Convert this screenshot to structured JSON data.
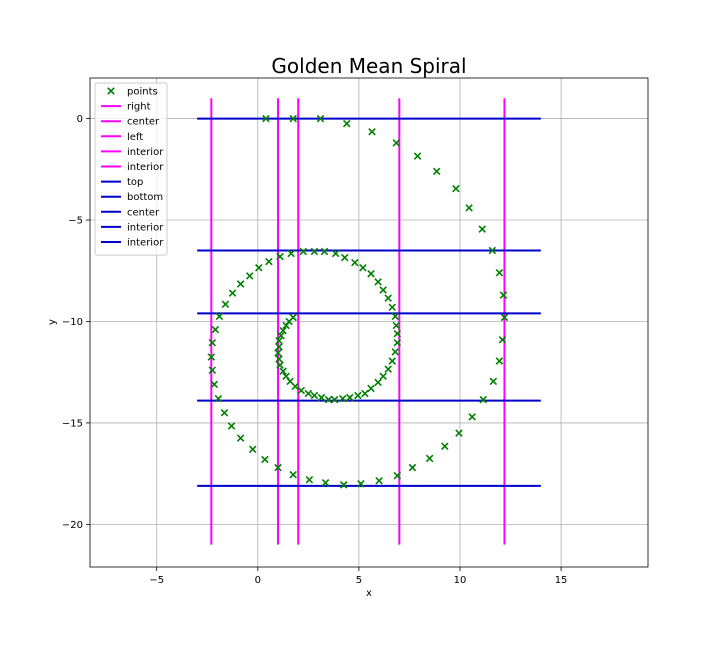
{
  "chart_data": {
    "type": "scatter",
    "title": "Golden Mean Spiral",
    "xlabel": "x",
    "ylabel": "y",
    "xlim": [
      -8.3,
      19.3
    ],
    "ylim": [
      -22.1,
      2.0
    ],
    "grid": true,
    "legend_position": "top-left",
    "x_ticks": [
      -5,
      0,
      5,
      10,
      15
    ],
    "y_ticks": [
      0,
      -5,
      -10,
      -15,
      -20
    ],
    "x_tick_labels": [
      "−5",
      "0",
      "5",
      "10",
      "15"
    ],
    "y_tick_labels": [
      "0",
      "−5",
      "−10",
      "−15",
      "−20"
    ],
    "colors": {
      "points": "#008000",
      "vertical": "#ff00ff",
      "horizontal": "#0000cc"
    },
    "points": [
      [
        0.4,
        0.0
      ],
      [
        1.75,
        0.0
      ],
      [
        3.1,
        0.0
      ],
      [
        4.4,
        -0.25
      ],
      [
        5.65,
        -0.65
      ],
      [
        6.85,
        -1.2
      ],
      [
        7.9,
        -1.85
      ],
      [
        8.85,
        -2.6
      ],
      [
        9.8,
        -3.45
      ],
      [
        10.45,
        -4.4
      ],
      [
        11.1,
        -5.45
      ],
      [
        11.6,
        -6.5
      ],
      [
        11.95,
        -7.6
      ],
      [
        12.15,
        -8.7
      ],
      [
        12.2,
        -9.8
      ],
      [
        12.1,
        -10.9
      ],
      [
        11.95,
        -11.95
      ],
      [
        11.65,
        -12.95
      ],
      [
        11.15,
        -13.85
      ],
      [
        10.6,
        -14.7
      ],
      [
        9.95,
        -15.5
      ],
      [
        9.25,
        -16.15
      ],
      [
        8.5,
        -16.75
      ],
      [
        7.65,
        -17.2
      ],
      [
        6.9,
        -17.6
      ],
      [
        6.0,
        -17.85
      ],
      [
        5.1,
        -18.0
      ],
      [
        4.25,
        -18.05
      ],
      [
        3.35,
        -17.95
      ],
      [
        2.55,
        -17.8
      ],
      [
        1.75,
        -17.55
      ],
      [
        1.0,
        -17.2
      ],
      [
        0.35,
        -16.8
      ],
      [
        -0.25,
        -16.3
      ],
      [
        -0.85,
        -15.75
      ],
      [
        -1.3,
        -15.15
      ],
      [
        -1.65,
        -14.5
      ],
      [
        -1.95,
        -13.8
      ],
      [
        -2.15,
        -13.1
      ],
      [
        -2.25,
        -12.4
      ],
      [
        -2.3,
        -11.75
      ],
      [
        -2.25,
        -11.05
      ],
      [
        -2.1,
        -10.4
      ],
      [
        -1.9,
        -9.75
      ],
      [
        -1.6,
        -9.15
      ],
      [
        -1.25,
        -8.6
      ],
      [
        -0.85,
        -8.15
      ],
      [
        -0.4,
        -7.75
      ],
      [
        0.05,
        -7.35
      ],
      [
        0.55,
        -7.05
      ],
      [
        1.1,
        -6.8
      ],
      [
        1.65,
        -6.65
      ],
      [
        2.25,
        -6.55
      ],
      [
        2.8,
        -6.55
      ],
      [
        3.3,
        -6.55
      ],
      [
        3.85,
        -6.65
      ],
      [
        4.3,
        -6.85
      ],
      [
        4.8,
        -7.1
      ],
      [
        5.2,
        -7.35
      ],
      [
        5.6,
        -7.65
      ],
      [
        5.95,
        -8.05
      ],
      [
        6.2,
        -8.45
      ],
      [
        6.45,
        -8.85
      ],
      [
        6.65,
        -9.3
      ],
      [
        6.8,
        -9.75
      ],
      [
        6.85,
        -10.2
      ],
      [
        6.9,
        -10.6
      ],
      [
        6.9,
        -11.05
      ],
      [
        6.8,
        -11.5
      ],
      [
        6.65,
        -11.95
      ],
      [
        6.45,
        -12.35
      ],
      [
        6.2,
        -12.7
      ],
      [
        5.95,
        -13.0
      ],
      [
        5.6,
        -13.3
      ],
      [
        5.3,
        -13.55
      ],
      [
        4.95,
        -13.65
      ],
      [
        4.55,
        -13.75
      ],
      [
        4.2,
        -13.8
      ],
      [
        3.8,
        -13.85
      ],
      [
        3.5,
        -13.85
      ],
      [
        3.15,
        -13.75
      ],
      [
        2.8,
        -13.65
      ],
      [
        2.5,
        -13.55
      ],
      [
        2.15,
        -13.4
      ],
      [
        1.85,
        -13.2
      ],
      [
        1.6,
        -12.95
      ],
      [
        1.4,
        -12.7
      ],
      [
        1.25,
        -12.45
      ],
      [
        1.1,
        -12.15
      ],
      [
        1.05,
        -11.85
      ],
      [
        1.0,
        -11.55
      ],
      [
        1.05,
        -11.25
      ],
      [
        1.05,
        -10.95
      ],
      [
        1.15,
        -10.7
      ],
      [
        1.25,
        -10.45
      ],
      [
        1.4,
        -10.2
      ],
      [
        1.55,
        -10.0
      ],
      [
        1.75,
        -9.8
      ]
    ],
    "vertical_lines": [
      {
        "name": "right",
        "x": 12.2
      },
      {
        "name": "center",
        "x": 7.0
      },
      {
        "name": "left",
        "x": -2.3
      },
      {
        "name": "interior",
        "x": 1.0
      },
      {
        "name": "interior",
        "x": 2.0
      }
    ],
    "vertical_span": [
      1.0,
      -21.0
    ],
    "horizontal_lines": [
      {
        "name": "top",
        "y": 0.0
      },
      {
        "name": "bottom",
        "y": -18.1
      },
      {
        "name": "center",
        "y": -9.6
      },
      {
        "name": "interior",
        "y": -6.5
      },
      {
        "name": "interior",
        "y": -13.9
      }
    ],
    "horizontal_span": [
      -3.0,
      14.0
    ],
    "legend_entries": [
      {
        "label": "points",
        "kind": "marker",
        "color": "#008000"
      },
      {
        "label": "right",
        "kind": "line",
        "color": "#ff00ff"
      },
      {
        "label": "center",
        "kind": "line",
        "color": "#ff00ff"
      },
      {
        "label": "left",
        "kind": "line",
        "color": "#ff00ff"
      },
      {
        "label": "interior",
        "kind": "line",
        "color": "#ff00ff"
      },
      {
        "label": "interior",
        "kind": "line",
        "color": "#ff00ff"
      },
      {
        "label": "top",
        "kind": "line",
        "color": "#0000cc"
      },
      {
        "label": "bottom",
        "kind": "line",
        "color": "#0000cc"
      },
      {
        "label": "center",
        "kind": "line",
        "color": "#0000cc"
      },
      {
        "label": "interior",
        "kind": "line",
        "color": "#0000cc"
      },
      {
        "label": "interior",
        "kind": "line",
        "color": "#0000cc"
      }
    ]
  }
}
